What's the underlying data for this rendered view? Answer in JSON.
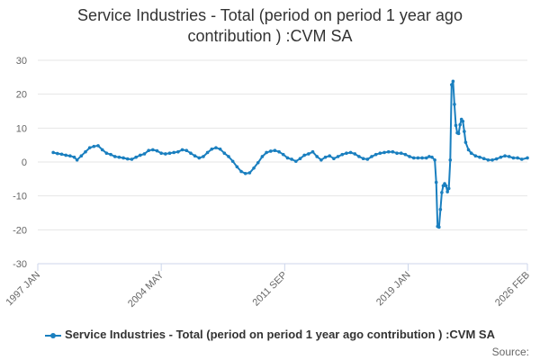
{
  "chart_data": {
    "type": "line",
    "title_line1": "Service Industries - Total (period on period 1 year ago",
    "title_line2": "contribution ) :CVM SA",
    "ylim": [
      -30,
      30
    ],
    "y_ticks": [
      30,
      20,
      10,
      0,
      -10,
      -20,
      -30
    ],
    "x_range": [
      "1997-01",
      "2026-02"
    ],
    "x_tick_labels": [
      {
        "date": "1997-01",
        "label": "1997 JAN"
      },
      {
        "date": "2004-05",
        "label": "2004 MAY"
      },
      {
        "date": "2011-09",
        "label": "2011 SEP"
      },
      {
        "date": "2019-01",
        "label": "2019 JAN"
      },
      {
        "date": "2026-02",
        "label": "2026 FEB"
      }
    ],
    "grid": "horizontal",
    "legend_position": "bottom",
    "color": "#1a7fbf",
    "series": [
      {
        "name": "Service Industries - Total (period on period 1 year ago contribution ) :CVM SA",
        "points": [
          [
            "1997-12",
            2.8
          ],
          [
            "1998-03",
            2.5
          ],
          [
            "1998-06",
            2.3
          ],
          [
            "1998-09",
            2.0
          ],
          [
            "1998-12",
            1.8
          ],
          [
            "1999-03",
            1.4
          ],
          [
            "1999-05",
            0.6
          ],
          [
            "1999-08",
            1.8
          ],
          [
            "1999-11",
            3.0
          ],
          [
            "2000-02",
            4.2
          ],
          [
            "2000-05",
            4.6
          ],
          [
            "2000-08",
            4.8
          ],
          [
            "2000-11",
            3.6
          ],
          [
            "2001-02",
            2.6
          ],
          [
            "2001-05",
            2.2
          ],
          [
            "2001-08",
            1.6
          ],
          [
            "2001-11",
            1.4
          ],
          [
            "2002-02",
            1.2
          ],
          [
            "2002-05",
            0.9
          ],
          [
            "2002-08",
            0.8
          ],
          [
            "2002-11",
            1.4
          ],
          [
            "2003-02",
            2.0
          ],
          [
            "2003-05",
            2.4
          ],
          [
            "2003-08",
            3.4
          ],
          [
            "2003-11",
            3.6
          ],
          [
            "2004-02",
            3.3
          ],
          [
            "2004-05",
            2.6
          ],
          [
            "2004-08",
            2.4
          ],
          [
            "2004-11",
            2.6
          ],
          [
            "2005-02",
            2.8
          ],
          [
            "2005-05",
            3.0
          ],
          [
            "2005-08",
            3.6
          ],
          [
            "2005-11",
            3.4
          ],
          [
            "2006-02",
            2.6
          ],
          [
            "2006-05",
            1.8
          ],
          [
            "2006-08",
            1.2
          ],
          [
            "2006-11",
            1.6
          ],
          [
            "2007-02",
            2.8
          ],
          [
            "2007-05",
            3.8
          ],
          [
            "2007-08",
            4.2
          ],
          [
            "2007-11",
            3.8
          ],
          [
            "2008-02",
            2.6
          ],
          [
            "2008-05",
            1.6
          ],
          [
            "2008-08",
            0.2
          ],
          [
            "2008-11",
            -1.4
          ],
          [
            "2009-02",
            -2.8
          ],
          [
            "2009-05",
            -3.4
          ],
          [
            "2009-08",
            -3.2
          ],
          [
            "2009-11",
            -1.8
          ],
          [
            "2010-02",
            -0.2
          ],
          [
            "2010-05",
            1.6
          ],
          [
            "2010-08",
            2.8
          ],
          [
            "2010-11",
            3.2
          ],
          [
            "2011-02",
            3.4
          ],
          [
            "2011-05",
            3.0
          ],
          [
            "2011-08",
            2.2
          ],
          [
            "2011-11",
            1.2
          ],
          [
            "2012-02",
            0.8
          ],
          [
            "2012-05",
            0.2
          ],
          [
            "2012-08",
            1.0
          ],
          [
            "2012-11",
            2.0
          ],
          [
            "2013-02",
            2.4
          ],
          [
            "2013-05",
            3.0
          ],
          [
            "2013-08",
            1.6
          ],
          [
            "2013-11",
            0.6
          ],
          [
            "2014-02",
            1.4
          ],
          [
            "2014-05",
            1.8
          ],
          [
            "2014-08",
            1.0
          ],
          [
            "2014-11",
            1.6
          ],
          [
            "2015-02",
            2.2
          ],
          [
            "2015-05",
            2.6
          ],
          [
            "2015-08",
            2.8
          ],
          [
            "2015-11",
            2.4
          ],
          [
            "2016-02",
            1.6
          ],
          [
            "2016-05",
            1.0
          ],
          [
            "2016-08",
            0.8
          ],
          [
            "2016-11",
            1.6
          ],
          [
            "2017-02",
            2.2
          ],
          [
            "2017-05",
            2.6
          ],
          [
            "2017-08",
            2.8
          ],
          [
            "2017-11",
            3.0
          ],
          [
            "2018-02",
            3.0
          ],
          [
            "2018-05",
            2.6
          ],
          [
            "2018-08",
            2.6
          ],
          [
            "2018-11",
            2.2
          ],
          [
            "2019-02",
            1.6
          ],
          [
            "2019-05",
            1.2
          ],
          [
            "2019-08",
            1.2
          ],
          [
            "2019-11",
            1.2
          ],
          [
            "2020-02",
            1.2
          ],
          [
            "2020-04",
            1.6
          ],
          [
            "2020-06",
            1.4
          ],
          [
            "2020-08",
            0.6
          ],
          [
            "2020-09",
            -6.0
          ],
          [
            "2020-10",
            -19.0
          ],
          [
            "2020-11",
            -19.2
          ],
          [
            "2020-12",
            -14.0
          ],
          [
            "2021-01",
            -9.0
          ],
          [
            "2021-02",
            -7.0
          ],
          [
            "2021-03",
            -6.4
          ],
          [
            "2021-04",
            -7.0
          ],
          [
            "2021-05",
            -8.8
          ],
          [
            "2021-06",
            -7.8
          ],
          [
            "2021-07",
            0.6
          ],
          [
            "2021-08",
            22.8
          ],
          [
            "2021-09",
            23.8
          ],
          [
            "2021-10",
            17.0
          ],
          [
            "2021-11",
            10.8
          ],
          [
            "2021-12",
            8.6
          ],
          [
            "2022-01",
            8.4
          ],
          [
            "2022-02",
            11.0
          ],
          [
            "2022-03",
            12.6
          ],
          [
            "2022-04",
            12.0
          ],
          [
            "2022-05",
            9.0
          ],
          [
            "2022-06",
            5.8
          ],
          [
            "2022-08",
            3.6
          ],
          [
            "2022-10",
            2.6
          ],
          [
            "2023-01",
            1.8
          ],
          [
            "2023-04",
            1.4
          ],
          [
            "2023-07",
            1.0
          ],
          [
            "2023-10",
            0.6
          ],
          [
            "2024-01",
            0.6
          ],
          [
            "2024-04",
            0.9
          ],
          [
            "2024-07",
            1.4
          ],
          [
            "2024-10",
            1.8
          ],
          [
            "2025-01",
            1.6
          ],
          [
            "2025-04",
            1.2
          ],
          [
            "2025-07",
            1.2
          ],
          [
            "2025-10",
            0.8
          ],
          [
            "2026-02",
            1.2
          ]
        ]
      }
    ]
  },
  "legend": {
    "label": "Service Industries - Total (period on period 1 year ago contribution ) :CVM SA"
  },
  "source_label": "Source:"
}
